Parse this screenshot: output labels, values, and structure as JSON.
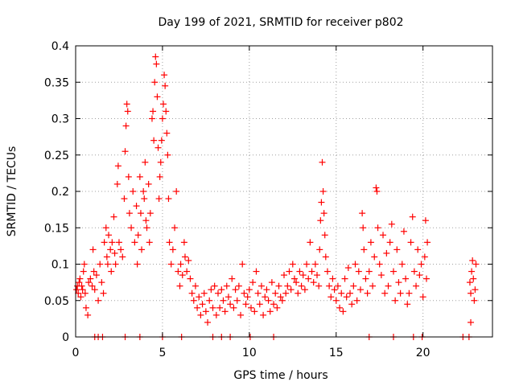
{
  "chart_data": {
    "type": "scatter",
    "title": "Day 199 of 2021, SRMTID for receiver p802",
    "xlabel": "GPS time / hours",
    "ylabel": "SRMTID / TECUs",
    "xlim": [
      0,
      24
    ],
    "ylim": [
      0,
      0.4
    ],
    "x_ticks": [
      0,
      5,
      10,
      15,
      20
    ],
    "x_tick_labels": [
      "0",
      "5",
      "10",
      "15",
      "20"
    ],
    "y_ticks": [
      0,
      0.05,
      0.1,
      0.15,
      0.2,
      0.25,
      0.3,
      0.35,
      0.4
    ],
    "y_tick_labels": [
      "0",
      "0.05",
      "0.1",
      "0.15",
      "0.2",
      "0.25",
      "0.3",
      "0.35",
      "0.4"
    ],
    "grid": true,
    "marker": "+",
    "marker_color": "#ff0000",
    "series": [
      {
        "name": "SRMTID",
        "points": [
          [
            0.05,
            0.065
          ],
          [
            0.1,
            0.07
          ],
          [
            0.15,
            0.06
          ],
          [
            0.2,
            0.075
          ],
          [
            0.25,
            0.08
          ],
          [
            0.3,
            0.055
          ],
          [
            0.35,
            0.07
          ],
          [
            0.4,
            0.065
          ],
          [
            0.45,
            0.09
          ],
          [
            0.5,
            0.1
          ],
          [
            0.55,
            0.06
          ],
          [
            0.6,
            0.04
          ],
          [
            0.7,
            0.03
          ],
          [
            0.75,
            0.075
          ],
          [
            0.85,
            0.08
          ],
          [
            0.95,
            0.07
          ],
          [
            1.0,
            0.12
          ],
          [
            1.05,
            0.09
          ],
          [
            1.1,
            0.065
          ],
          [
            1.2,
            0.085
          ],
          [
            1.3,
            0.05
          ],
          [
            1.4,
            0.1
          ],
          [
            1.5,
            0.075
          ],
          [
            1.6,
            0.06
          ],
          [
            1.65,
            0.13
          ],
          [
            1.75,
            0.15
          ],
          [
            1.8,
            0.11
          ],
          [
            1.85,
            0.1
          ],
          [
            1.9,
            0.14
          ],
          [
            2.0,
            0.12
          ],
          [
            2.05,
            0.09
          ],
          [
            2.1,
            0.13
          ],
          [
            2.2,
            0.165
          ],
          [
            2.25,
            0.115
          ],
          [
            2.3,
            0.1
          ],
          [
            2.4,
            0.21
          ],
          [
            2.45,
            0.235
          ],
          [
            2.5,
            0.13
          ],
          [
            2.6,
            0.12
          ],
          [
            2.7,
            0.11
          ],
          [
            2.8,
            0.19
          ],
          [
            2.85,
            0.255
          ],
          [
            2.9,
            0.29
          ],
          [
            2.95,
            0.32
          ],
          [
            3.0,
            0.31
          ],
          [
            3.05,
            0.22
          ],
          [
            3.1,
            0.17
          ],
          [
            3.2,
            0.15
          ],
          [
            3.3,
            0.2
          ],
          [
            3.4,
            0.13
          ],
          [
            3.5,
            0.18
          ],
          [
            3.55,
            0.1
          ],
          [
            3.6,
            0.14
          ],
          [
            3.7,
            0.22
          ],
          [
            3.75,
            0.17
          ],
          [
            3.8,
            0.12
          ],
          [
            3.9,
            0.2
          ],
          [
            3.95,
            0.19
          ],
          [
            4.0,
            0.24
          ],
          [
            4.05,
            0.16
          ],
          [
            4.1,
            0.15
          ],
          [
            4.2,
            0.21
          ],
          [
            4.25,
            0.13
          ],
          [
            4.3,
            0.17
          ],
          [
            4.4,
            0.3
          ],
          [
            4.45,
            0.31
          ],
          [
            4.5,
            0.27
          ],
          [
            4.55,
            0.35
          ],
          [
            4.6,
            0.385
          ],
          [
            4.65,
            0.375
          ],
          [
            4.7,
            0.33
          ],
          [
            4.75,
            0.26
          ],
          [
            4.8,
            0.19
          ],
          [
            4.85,
            0.22
          ],
          [
            4.9,
            0.24
          ],
          [
            4.95,
            0.27
          ],
          [
            5.0,
            0.3
          ],
          [
            5.05,
            0.32
          ],
          [
            5.1,
            0.36
          ],
          [
            5.15,
            0.345
          ],
          [
            5.2,
            0.31
          ],
          [
            5.25,
            0.28
          ],
          [
            5.3,
            0.25
          ],
          [
            5.35,
            0.19
          ],
          [
            5.4,
            0.13
          ],
          [
            5.5,
            0.1
          ],
          [
            5.6,
            0.12
          ],
          [
            5.7,
            0.15
          ],
          [
            5.8,
            0.2
          ],
          [
            5.9,
            0.09
          ],
          [
            6.0,
            0.07
          ],
          [
            6.05,
            0.1
          ],
          [
            6.15,
            0.085
          ],
          [
            6.25,
            0.13
          ],
          [
            6.3,
            0.11
          ],
          [
            6.4,
            0.09
          ],
          [
            6.5,
            0.105
          ],
          [
            6.6,
            0.08
          ],
          [
            6.7,
            0.06
          ],
          [
            6.8,
            0.05
          ],
          [
            6.9,
            0.07
          ],
          [
            7.0,
            0.04
          ],
          [
            7.1,
            0.055
          ],
          [
            7.2,
            0.03
          ],
          [
            7.3,
            0.045
          ],
          [
            7.4,
            0.06
          ],
          [
            7.5,
            0.035
          ],
          [
            7.6,
            0.02
          ],
          [
            7.7,
            0.05
          ],
          [
            7.8,
            0.065
          ],
          [
            7.9,
            0.04
          ],
          [
            8.0,
            0.07
          ],
          [
            8.1,
            0.03
          ],
          [
            8.2,
            0.06
          ],
          [
            8.3,
            0.04
          ],
          [
            8.4,
            0.065
          ],
          [
            8.5,
            0.05
          ],
          [
            8.6,
            0.035
          ],
          [
            8.7,
            0.07
          ],
          [
            8.8,
            0.055
          ],
          [
            8.9,
            0.045
          ],
          [
            9.0,
            0.08
          ],
          [
            9.1,
            0.04
          ],
          [
            9.2,
            0.065
          ],
          [
            9.3,
            0.05
          ],
          [
            9.4,
            0.07
          ],
          [
            9.5,
            0.03
          ],
          [
            9.6,
            0.1
          ],
          [
            9.7,
            0.06
          ],
          [
            9.8,
            0.045
          ],
          [
            9.9,
            0.055
          ],
          [
            10.0,
            0.065
          ],
          [
            10.1,
            0.04
          ],
          [
            10.2,
            0.075
          ],
          [
            10.3,
            0.035
          ],
          [
            10.4,
            0.09
          ],
          [
            10.5,
            0.06
          ],
          [
            10.6,
            0.045
          ],
          [
            10.7,
            0.07
          ],
          [
            10.8,
            0.03
          ],
          [
            10.9,
            0.055
          ],
          [
            11.0,
            0.065
          ],
          [
            11.1,
            0.05
          ],
          [
            11.2,
            0.035
          ],
          [
            11.3,
            0.075
          ],
          [
            11.4,
            0.045
          ],
          [
            11.5,
            0.06
          ],
          [
            11.6,
            0.04
          ],
          [
            11.7,
            0.07
          ],
          [
            11.8,
            0.055
          ],
          [
            11.9,
            0.05
          ],
          [
            12.0,
            0.085
          ],
          [
            12.1,
            0.06
          ],
          [
            12.2,
            0.07
          ],
          [
            12.3,
            0.09
          ],
          [
            12.4,
            0.065
          ],
          [
            12.5,
            0.1
          ],
          [
            12.6,
            0.08
          ],
          [
            12.7,
            0.075
          ],
          [
            12.8,
            0.06
          ],
          [
            12.9,
            0.09
          ],
          [
            13.0,
            0.07
          ],
          [
            13.1,
            0.085
          ],
          [
            13.2,
            0.065
          ],
          [
            13.3,
            0.1
          ],
          [
            13.4,
            0.08
          ],
          [
            13.5,
            0.13
          ],
          [
            13.6,
            0.09
          ],
          [
            13.7,
            0.075
          ],
          [
            13.8,
            0.1
          ],
          [
            13.9,
            0.085
          ],
          [
            14.0,
            0.07
          ],
          [
            14.05,
            0.12
          ],
          [
            14.1,
            0.16
          ],
          [
            14.15,
            0.185
          ],
          [
            14.2,
            0.24
          ],
          [
            14.25,
            0.2
          ],
          [
            14.3,
            0.17
          ],
          [
            14.35,
            0.14
          ],
          [
            14.4,
            0.11
          ],
          [
            14.5,
            0.09
          ],
          [
            14.6,
            0.07
          ],
          [
            14.7,
            0.055
          ],
          [
            14.8,
            0.08
          ],
          [
            14.9,
            0.065
          ],
          [
            15.0,
            0.05
          ],
          [
            15.1,
            0.07
          ],
          [
            15.2,
            0.04
          ],
          [
            15.3,
            0.06
          ],
          [
            15.4,
            0.035
          ],
          [
            15.5,
            0.08
          ],
          [
            15.6,
            0.055
          ],
          [
            15.7,
            0.095
          ],
          [
            15.8,
            0.06
          ],
          [
            15.9,
            0.045
          ],
          [
            16.0,
            0.07
          ],
          [
            16.1,
            0.1
          ],
          [
            16.2,
            0.05
          ],
          [
            16.3,
            0.09
          ],
          [
            16.4,
            0.065
          ],
          [
            16.5,
            0.17
          ],
          [
            16.55,
            0.15
          ],
          [
            16.6,
            0.12
          ],
          [
            16.7,
            0.08
          ],
          [
            16.8,
            0.06
          ],
          [
            16.9,
            0.09
          ],
          [
            17.0,
            0.13
          ],
          [
            17.1,
            0.07
          ],
          [
            17.2,
            0.11
          ],
          [
            17.3,
            0.205
          ],
          [
            17.35,
            0.2
          ],
          [
            17.4,
            0.15
          ],
          [
            17.5,
            0.1
          ],
          [
            17.6,
            0.085
          ],
          [
            17.7,
            0.14
          ],
          [
            17.8,
            0.06
          ],
          [
            17.9,
            0.115
          ],
          [
            18.0,
            0.07
          ],
          [
            18.1,
            0.13
          ],
          [
            18.2,
            0.155
          ],
          [
            18.3,
            0.09
          ],
          [
            18.4,
            0.05
          ],
          [
            18.5,
            0.12
          ],
          [
            18.6,
            0.075
          ],
          [
            18.7,
            0.06
          ],
          [
            18.8,
            0.1
          ],
          [
            18.9,
            0.145
          ],
          [
            19.0,
            0.08
          ],
          [
            19.1,
            0.045
          ],
          [
            19.2,
            0.06
          ],
          [
            19.3,
            0.13
          ],
          [
            19.4,
            0.165
          ],
          [
            19.5,
            0.09
          ],
          [
            19.6,
            0.07
          ],
          [
            19.7,
            0.12
          ],
          [
            19.8,
            0.085
          ],
          [
            19.9,
            0.1
          ],
          [
            20.0,
            0.055
          ],
          [
            20.1,
            0.11
          ],
          [
            20.15,
            0.16
          ],
          [
            20.2,
            0.08
          ],
          [
            20.25,
            0.13
          ],
          [
            22.7,
            0.075
          ],
          [
            22.75,
            0.06
          ],
          [
            22.8,
            0.09
          ],
          [
            22.85,
            0.105
          ],
          [
            22.9,
            0.08
          ],
          [
            22.95,
            0.05
          ],
          [
            23.0,
            0.065
          ],
          [
            23.05,
            0.1
          ],
          [
            22.75,
            0.02
          ]
        ]
      }
    ],
    "zero_markers": [
      1.1,
      1.3,
      1.55,
      2.85,
      3.7,
      5.0,
      6.1,
      7.9,
      8.4,
      8.9,
      10.05,
      11.4,
      16.9,
      18.3,
      19.45,
      19.95,
      22.3,
      22.65
    ]
  }
}
